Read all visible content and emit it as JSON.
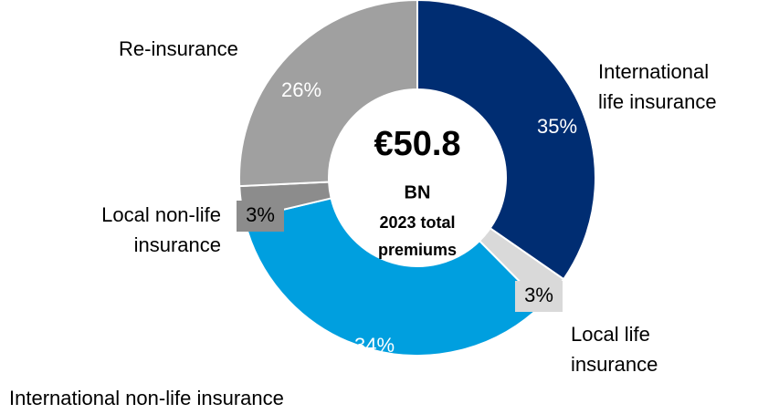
{
  "chart_data": {
    "type": "donut",
    "categories": [
      [
        "International",
        "life insurance"
      ],
      [
        "Local life",
        "insurance"
      ],
      [
        "International non-life insurance"
      ],
      [
        "Local non-life",
        "insurance"
      ],
      [
        "Re-insurance"
      ]
    ],
    "values": [
      35,
      3,
      34,
      3,
      26
    ],
    "value_labels": [
      "35%",
      "3%",
      "34%",
      "3%",
      "26%"
    ],
    "colors": [
      "#002d72",
      "#d9d9d9",
      "#009fdf",
      "#8c8c8c",
      "#a0a0a0"
    ],
    "center_text": [
      "€50.8",
      "BN",
      "2023 total",
      "premiums"
    ]
  }
}
